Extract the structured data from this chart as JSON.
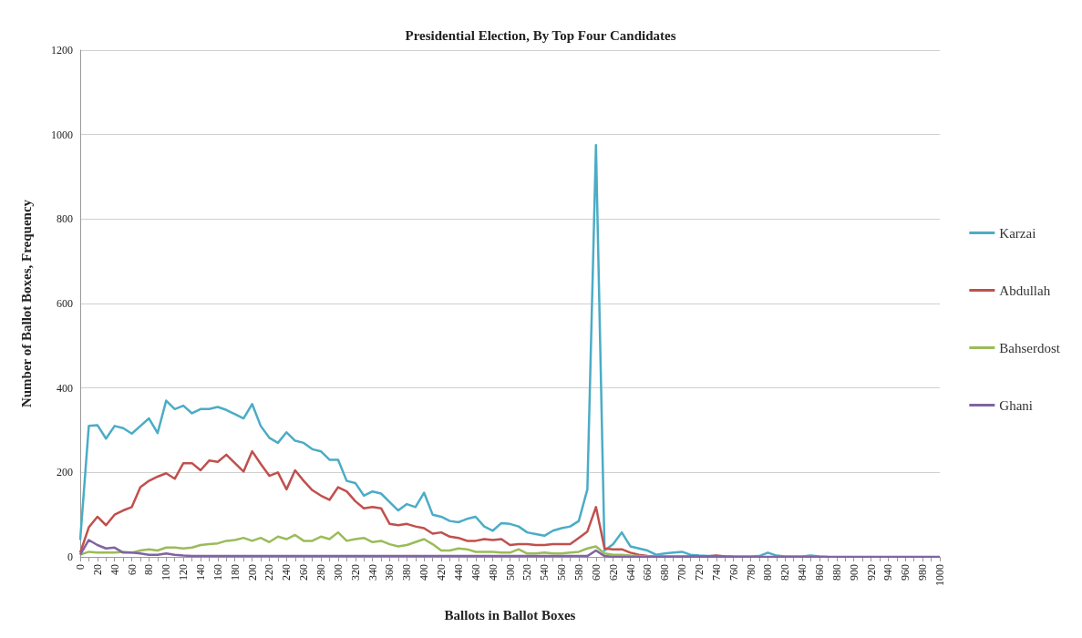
{
  "chart_data": {
    "type": "line",
    "title": "Presidential Election, By Top Four Candidates",
    "xlabel": "Ballots in Ballot Boxes",
    "ylabel": "Number of Ballot Boxes, Frequency",
    "categories": [
      "0",
      null,
      "20",
      null,
      "40",
      null,
      "60",
      null,
      "80",
      null,
      "100",
      null,
      "120",
      null,
      "140",
      null,
      "160",
      null,
      "180",
      null,
      "200",
      null,
      "220",
      null,
      "240",
      null,
      "260",
      null,
      "280",
      null,
      "300",
      null,
      "320",
      null,
      "340",
      null,
      "360",
      null,
      "380",
      null,
      "400",
      null,
      "420",
      null,
      "440",
      null,
      "460",
      null,
      "480",
      null,
      "500",
      null,
      "520",
      null,
      "540",
      null,
      "560",
      null,
      "580",
      null,
      "600",
      null,
      "620",
      null,
      "640",
      null,
      "660",
      null,
      "680",
      null,
      "700",
      null,
      "720",
      null,
      "740",
      null,
      "760",
      null,
      "780",
      null,
      "800",
      null,
      "820",
      null,
      "840",
      null,
      "860",
      null,
      "880",
      null,
      "900",
      null,
      "920",
      null,
      "940",
      null,
      "960",
      null,
      "980",
      null,
      "1000"
    ],
    "series": [
      {
        "name": "Karzai",
        "color": "#4bacc6",
        "values": [
          40,
          310,
          312,
          280,
          310,
          305,
          292,
          310,
          328,
          293,
          370,
          350,
          358,
          340,
          350,
          350,
          355,
          348,
          338,
          328,
          362,
          310,
          282,
          270,
          295,
          275,
          270,
          255,
          250,
          230,
          230,
          180,
          175,
          145,
          155,
          150,
          130,
          110,
          125,
          118,
          152,
          100,
          95,
          85,
          82,
          90,
          95,
          72,
          62,
          80,
          78,
          72,
          58,
          54,
          50,
          62,
          68,
          72,
          85,
          160,
          975,
          15,
          30,
          58,
          25,
          20,
          15,
          5,
          8,
          10,
          12,
          5,
          3,
          2,
          2,
          1,
          1,
          1,
          1,
          2,
          10,
          3,
          1,
          1,
          1,
          3,
          1,
          0,
          null,
          null,
          null,
          null,
          null,
          null,
          null,
          null,
          null,
          null,
          null,
          null,
          null
        ]
      },
      {
        "name": "Abdullah",
        "color": "#c0504d",
        "values": [
          10,
          70,
          95,
          75,
          100,
          110,
          118,
          165,
          180,
          190,
          198,
          185,
          222,
          222,
          205,
          228,
          225,
          242,
          222,
          202,
          250,
          220,
          192,
          200,
          160,
          205,
          180,
          158,
          145,
          135,
          165,
          155,
          132,
          115,
          118,
          115,
          78,
          75,
          78,
          72,
          68,
          55,
          58,
          48,
          45,
          38,
          38,
          42,
          40,
          42,
          28,
          30,
          30,
          28,
          28,
          30,
          30,
          30,
          45,
          60,
          118,
          20,
          18,
          18,
          10,
          5,
          2,
          1,
          1,
          1,
          1,
          1,
          1,
          1,
          3,
          1,
          0,
          null,
          null,
          null,
          null,
          null,
          null,
          null,
          null,
          null,
          null,
          null,
          null,
          null,
          null,
          null,
          null,
          null,
          null,
          null,
          null,
          null,
          null,
          null,
          null
        ]
      },
      {
        "name": "Bahserdost",
        "color": "#9bbb59",
        "values": [
          5,
          12,
          10,
          10,
          10,
          12,
          10,
          15,
          18,
          15,
          22,
          22,
          20,
          22,
          28,
          30,
          32,
          38,
          40,
          45,
          38,
          45,
          35,
          48,
          42,
          52,
          38,
          38,
          48,
          42,
          58,
          38,
          42,
          45,
          35,
          38,
          30,
          25,
          28,
          35,
          42,
          30,
          15,
          15,
          20,
          18,
          12,
          12,
          12,
          10,
          10,
          18,
          8,
          8,
          10,
          8,
          8,
          10,
          12,
          20,
          25,
          8,
          5,
          5,
          3,
          2,
          1,
          1,
          1,
          1,
          0,
          null,
          null,
          null,
          null,
          null,
          null,
          null,
          null,
          null,
          null,
          null,
          null,
          null,
          null,
          null,
          null,
          null,
          null,
          null,
          null,
          null,
          null,
          null,
          null,
          null,
          null,
          null,
          null,
          null,
          null
        ]
      },
      {
        "name": "Ghani",
        "color": "#8064a2",
        "values": [
          5,
          40,
          28,
          20,
          22,
          10,
          10,
          8,
          5,
          5,
          8,
          5,
          3,
          2,
          2,
          2,
          2,
          2,
          2,
          2,
          2,
          2,
          2,
          2,
          2,
          2,
          2,
          2,
          2,
          2,
          2,
          2,
          2,
          2,
          2,
          2,
          2,
          2,
          2,
          2,
          2,
          2,
          2,
          2,
          2,
          2,
          2,
          2,
          2,
          2,
          2,
          2,
          2,
          2,
          2,
          2,
          2,
          2,
          2,
          2,
          15,
          2,
          0,
          0,
          0,
          0,
          0,
          0,
          0,
          0,
          0,
          0,
          0,
          0,
          0,
          0,
          0,
          0,
          0,
          0,
          0,
          0,
          0,
          0,
          0,
          0,
          0,
          0,
          0,
          0,
          0,
          0,
          0,
          0,
          0,
          0,
          0,
          0,
          0,
          0,
          0
        ]
      }
    ],
    "ylim": [
      0,
      1200
    ],
    "yticks": [
      0,
      200,
      400,
      600,
      800,
      1000,
      1200
    ],
    "grid": "y",
    "legend": "right",
    "marker": "none",
    "line_style": "solid"
  }
}
